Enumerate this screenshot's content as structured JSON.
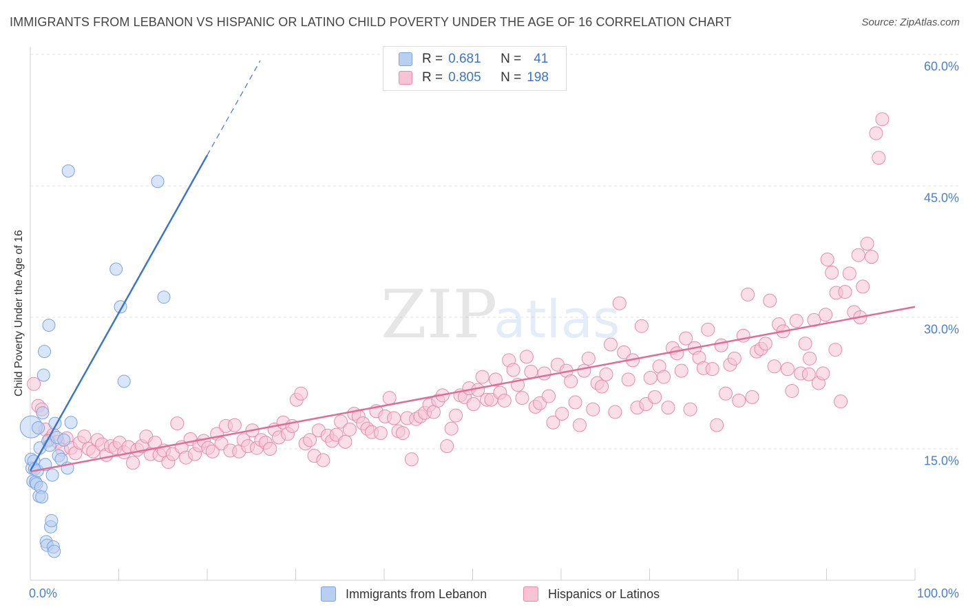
{
  "title": "IMMIGRANTS FROM LEBANON VS HISPANIC OR LATINO CHILD POVERTY UNDER THE AGE OF 16 CORRELATION CHART",
  "source": "Source: ZipAtlas.com",
  "watermark": {
    "zip": "ZIP",
    "atlas": "atlas"
  },
  "colors": {
    "blue": "#7ba3e0",
    "blue_fill": "#b9cff2",
    "blue_line": "#3a74d0",
    "pink": "#e88aab",
    "pink_fill": "#f8c4d5",
    "pink_line": "#e06b96",
    "tick_text": "#4a7fd0"
  },
  "legend": {
    "r_label": "R =",
    "n_label": "N =",
    "blue": {
      "r": "0.681",
      "n": "41"
    },
    "pink": {
      "r": "0.805",
      "n": "198"
    }
  },
  "chart_data": {
    "type": "scatter",
    "title": "IMMIGRANTS FROM LEBANON VS HISPANIC OR LATINO CHILD POVERTY UNDER THE AGE OF 16 CORRELATION CHART",
    "xlabel": "",
    "ylabel": "Child Poverty Under the Age of 16",
    "x_tick_labels": [
      "0.0%",
      "100.0%"
    ],
    "y_tick_labels": [
      "15.0%",
      "30.0%",
      "45.0%",
      "60.0%"
    ],
    "xlim": [
      0,
      100
    ],
    "ylim": [
      0,
      60
    ],
    "grid": "horizontal dashed",
    "legend_position": "top-center",
    "series": [
      {
        "name": "Immigrants from Lebanon",
        "color": "#7ba3e0",
        "trend": {
          "x0": 0,
          "y0": 12.5,
          "x1": 20,
          "y1": 48.5,
          "dashed_to_x": 26,
          "dashed_to_y": 59.3
        },
        "points": [
          [
            0.1,
            17.5
          ],
          [
            0.1,
            13.8
          ],
          [
            0.2,
            12.8
          ],
          [
            0.3,
            11.3
          ],
          [
            0.4,
            13.6
          ],
          [
            0.5,
            12.7
          ],
          [
            0.6,
            11.2
          ],
          [
            0.7,
            11.0
          ],
          [
            0.8,
            12.5
          ],
          [
            0.9,
            17.4
          ],
          [
            1.0,
            9.6
          ],
          [
            1.1,
            15.1
          ],
          [
            1.2,
            10.6
          ],
          [
            1.3,
            9.5
          ],
          [
            1.4,
            19.1
          ],
          [
            1.5,
            23.4
          ],
          [
            1.6,
            26.1
          ],
          [
            1.7,
            13.2
          ],
          [
            1.8,
            4.4
          ],
          [
            1.9,
            4.0
          ],
          [
            2.0,
            15.9
          ],
          [
            2.1,
            29.1
          ],
          [
            2.2,
            15.4
          ],
          [
            2.3,
            6.1
          ],
          [
            2.4,
            6.8
          ],
          [
            2.5,
            12.0
          ],
          [
            2.6,
            3.8
          ],
          [
            2.7,
            3.3
          ],
          [
            2.8,
            17.9
          ],
          [
            3.0,
            16.3
          ],
          [
            3.2,
            14.2
          ],
          [
            3.5,
            13.8
          ],
          [
            4.2,
            12.8
          ],
          [
            4.3,
            46.7
          ],
          [
            4.6,
            18.0
          ],
          [
            3.8,
            16.0
          ],
          [
            9.7,
            35.5
          ],
          [
            10.2,
            31.2
          ],
          [
            10.6,
            22.7
          ],
          [
            14.4,
            45.5
          ],
          [
            15.1,
            32.3
          ]
        ]
      },
      {
        "name": "Hispanics or Latinos",
        "color": "#e88aab",
        "trend": {
          "x0": 0,
          "y0": 12.4,
          "x1": 100,
          "y1": 31.2
        },
        "points": [
          [
            0.4,
            22.4
          ],
          [
            0.9,
            19.9
          ],
          [
            1.3,
            19.5
          ],
          [
            1.7,
            17.2
          ],
          [
            2.2,
            16.1
          ],
          [
            2.6,
            16.6
          ],
          [
            3.1,
            15.8
          ],
          [
            3.6,
            14.9
          ],
          [
            4.1,
            16.2
          ],
          [
            4.6,
            15.1
          ],
          [
            5.1,
            14.5
          ],
          [
            5.6,
            15.7
          ],
          [
            6.1,
            16.4
          ],
          [
            6.6,
            15.0
          ],
          [
            7.1,
            14.7
          ],
          [
            7.6,
            16.0
          ],
          [
            8.1,
            15.5
          ],
          [
            8.6,
            14.3
          ],
          [
            9.1,
            15.3
          ],
          [
            9.6,
            15.1
          ],
          [
            10.1,
            15.7
          ],
          [
            10.6,
            14.6
          ],
          [
            11.1,
            15.2
          ],
          [
            11.6,
            13.4
          ],
          [
            12.1,
            14.9
          ],
          [
            12.6,
            15.3
          ],
          [
            13.1,
            16.4
          ],
          [
            13.6,
            14.4
          ],
          [
            14.1,
            15.7
          ],
          [
            14.6,
            14.3
          ],
          [
            15.1,
            14.8
          ],
          [
            15.6,
            13.5
          ],
          [
            16.1,
            14.4
          ],
          [
            16.6,
            17.9
          ],
          [
            17.1,
            15.2
          ],
          [
            17.6,
            14.0
          ],
          [
            18.1,
            16.1
          ],
          [
            18.6,
            14.4
          ],
          [
            19.1,
            15.4
          ],
          [
            19.6,
            15.9
          ],
          [
            20.1,
            15.1
          ],
          [
            20.6,
            14.7
          ],
          [
            21.1,
            16.7
          ],
          [
            21.6,
            15.6
          ],
          [
            22.1,
            17.6
          ],
          [
            22.6,
            14.8
          ],
          [
            23.1,
            17.7
          ],
          [
            23.6,
            14.7
          ],
          [
            24.1,
            16.0
          ],
          [
            24.6,
            15.3
          ],
          [
            25.1,
            17.1
          ],
          [
            25.6,
            15.1
          ],
          [
            26.1,
            16.0
          ],
          [
            26.6,
            15.7
          ],
          [
            27.1,
            15.0
          ],
          [
            27.6,
            17.2
          ],
          [
            28.1,
            16.3
          ],
          [
            28.6,
            18.0
          ],
          [
            29.1,
            16.7
          ],
          [
            29.6,
            17.6
          ],
          [
            30.1,
            20.6
          ],
          [
            30.6,
            21.3
          ],
          [
            31.1,
            15.6
          ],
          [
            31.6,
            16.0
          ],
          [
            32.1,
            14.2
          ],
          [
            32.6,
            17.1
          ],
          [
            33.1,
            13.7
          ],
          [
            33.6,
            16.5
          ],
          [
            34.1,
            15.9
          ],
          [
            34.6,
            16.6
          ],
          [
            35.1,
            18.1
          ],
          [
            35.6,
            15.8
          ],
          [
            36.1,
            17.2
          ],
          [
            36.6,
            19.0
          ],
          [
            37.1,
            18.7
          ],
          [
            37.6,
            17.9
          ],
          [
            38.1,
            17.3
          ],
          [
            38.6,
            16.9
          ],
          [
            39.1,
            19.3
          ],
          [
            39.6,
            16.8
          ],
          [
            40.1,
            18.7
          ],
          [
            40.6,
            20.8
          ],
          [
            41.1,
            18.5
          ],
          [
            41.6,
            17.0
          ],
          [
            42.1,
            16.8
          ],
          [
            42.6,
            18.5
          ],
          [
            43.1,
            13.8
          ],
          [
            43.6,
            18.4
          ],
          [
            44.1,
            18.7
          ],
          [
            44.6,
            19.1
          ],
          [
            45.1,
            20.0
          ],
          [
            45.6,
            19.2
          ],
          [
            46.1,
            20.5
          ],
          [
            46.6,
            21.1
          ],
          [
            47.1,
            15.3
          ],
          [
            47.6,
            17.3
          ],
          [
            48.1,
            18.8
          ],
          [
            48.6,
            21.1
          ],
          [
            49.1,
            20.9
          ],
          [
            49.6,
            21.9
          ],
          [
            50.1,
            20.1
          ],
          [
            50.6,
            21.7
          ],
          [
            51.1,
            23.2
          ],
          [
            51.6,
            20.6
          ],
          [
            52.1,
            20.6
          ],
          [
            52.6,
            22.9
          ],
          [
            53.1,
            21.4
          ],
          [
            53.6,
            20.5
          ],
          [
            54.1,
            25.1
          ],
          [
            54.6,
            24.0
          ],
          [
            55.1,
            22.3
          ],
          [
            55.6,
            20.8
          ],
          [
            56.1,
            25.5
          ],
          [
            56.6,
            23.8
          ],
          [
            57.1,
            19.8
          ],
          [
            57.6,
            20.2
          ],
          [
            58.1,
            23.6
          ],
          [
            58.6,
            21.0
          ],
          [
            59.1,
            18.0
          ],
          [
            59.6,
            24.6
          ],
          [
            60.1,
            19.0
          ],
          [
            60.6,
            23.9
          ],
          [
            61.1,
            22.7
          ],
          [
            61.6,
            20.3
          ],
          [
            62.1,
            17.7
          ],
          [
            62.6,
            23.9
          ],
          [
            63.1,
            25.3
          ],
          [
            63.6,
            19.5
          ],
          [
            64.1,
            22.5
          ],
          [
            64.6,
            22.1
          ],
          [
            65.1,
            23.5
          ],
          [
            65.6,
            26.9
          ],
          [
            66.1,
            19.2
          ],
          [
            66.6,
            31.6
          ],
          [
            67.1,
            26.0
          ],
          [
            67.6,
            22.9
          ],
          [
            68.1,
            25.1
          ],
          [
            68.6,
            19.7
          ],
          [
            69.1,
            29.0
          ],
          [
            69.6,
            20.1
          ],
          [
            70.1,
            23.1
          ],
          [
            70.6,
            20.9
          ],
          [
            71.1,
            24.4
          ],
          [
            71.6,
            23.2
          ],
          [
            72.1,
            19.7
          ],
          [
            72.6,
            26.5
          ],
          [
            73.1,
            25.9
          ],
          [
            73.6,
            23.9
          ],
          [
            74.1,
            27.6
          ],
          [
            74.6,
            19.5
          ],
          [
            75.1,
            26.5
          ],
          [
            75.6,
            25.4
          ],
          [
            76.1,
            24.2
          ],
          [
            76.6,
            28.6
          ],
          [
            77.1,
            24.1
          ],
          [
            77.6,
            17.7
          ],
          [
            78.1,
            26.8
          ],
          [
            78.6,
            21.3
          ],
          [
            79.1,
            24.6
          ],
          [
            79.6,
            25.3
          ],
          [
            80.1,
            20.5
          ],
          [
            80.6,
            27.9
          ],
          [
            81.1,
            32.6
          ],
          [
            81.6,
            20.9
          ],
          [
            82.1,
            26.1
          ],
          [
            82.6,
            26.4
          ],
          [
            83.1,
            27.0
          ],
          [
            83.6,
            31.9
          ],
          [
            84.1,
            24.4
          ],
          [
            84.6,
            29.2
          ],
          [
            85.1,
            28.4
          ],
          [
            85.6,
            24.1
          ],
          [
            86.1,
            21.6
          ],
          [
            86.6,
            29.6
          ],
          [
            87.1,
            23.6
          ],
          [
            87.6,
            27.0
          ],
          [
            88.1,
            25.3
          ],
          [
            88.6,
            29.7
          ],
          [
            89.1,
            22.5
          ],
          [
            89.6,
            23.6
          ],
          [
            90.1,
            36.6
          ],
          [
            90.6,
            35.1
          ],
          [
            91.1,
            32.8
          ],
          [
            91.6,
            20.4
          ],
          [
            92.1,
            32.9
          ],
          [
            92.6,
            35.0
          ],
          [
            93.1,
            30.6
          ],
          [
            93.6,
            37.1
          ],
          [
            94.1,
            33.5
          ],
          [
            94.6,
            38.4
          ],
          [
            95.1,
            36.9
          ],
          [
            95.6,
            51.0
          ],
          [
            95.9,
            48.2
          ],
          [
            96.3,
            52.6
          ],
          [
            89.9,
            30.3
          ],
          [
            91.0,
            26.3
          ],
          [
            93.8,
            30.0
          ],
          [
            88.0,
            23.5
          ]
        ]
      }
    ]
  },
  "bottom_legend": [
    {
      "label": "Immigrants from Lebanon"
    },
    {
      "label": "Hispanics or Latinos"
    }
  ]
}
